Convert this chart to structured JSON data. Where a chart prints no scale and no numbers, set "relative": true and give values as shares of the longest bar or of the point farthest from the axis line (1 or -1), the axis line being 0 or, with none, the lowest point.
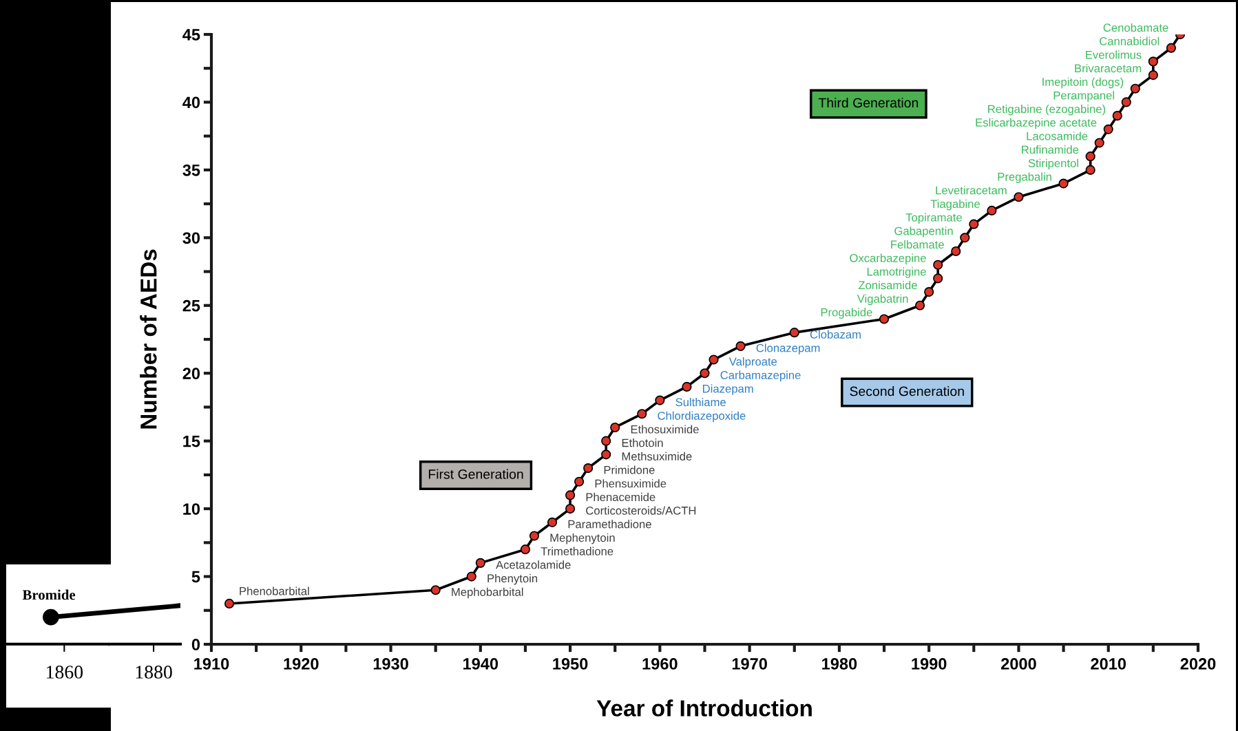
{
  "chart_data": [
    {
      "type": "line",
      "xlabel": "Year of Introduction",
      "ylabel": "Number of AEDs",
      "xlim": [
        1910,
        2020
      ],
      "ylim": [
        0,
        45
      ],
      "marker": "circle",
      "grid": false,
      "xticks": [
        1910,
        1920,
        1930,
        1940,
        1950,
        1960,
        1970,
        1980,
        1990,
        2000,
        2010,
        2020
      ],
      "yticks": [
        0,
        5,
        10,
        15,
        20,
        25,
        30,
        35,
        40,
        45
      ],
      "series": [
        {
          "name": "First Generation",
          "color": "#000000",
          "colors": [
            "#d8352a",
            "#d8352a",
            "#d8352a",
            "#d8352a",
            "#d8352a",
            "#d8352a",
            "#d8352a",
            "#d8352a",
            "#d8352a",
            "#d8352a",
            "#d8352a",
            "#d8352a",
            "#d8352a",
            "#d8352a"
          ],
          "x": [
            1912,
            1935,
            1939,
            1940,
            1945,
            1946,
            1948,
            1950,
            1950,
            1951,
            1952,
            1954,
            1954,
            1955
          ],
          "values": [
            3,
            4,
            5,
            6,
            7,
            8,
            9,
            10,
            11,
            12,
            13,
            14,
            15,
            16
          ],
          "value_labels": [
            "Phenobarbital",
            "Mephobarbital",
            "Phenytoin",
            "Acetazolamide",
            "Trimethadione",
            "Mephenytoin",
            "Paramethadione",
            "Corticosteroids/ACTH",
            "Phenacemide",
            "Phensuximide",
            "Primidone",
            "Methsuximide",
            "Ethotoin",
            "Ethosuximide"
          ]
        },
        {
          "name": "Second Generation",
          "color": "#000000",
          "colors": [
            "#d8352a",
            "#d8352a",
            "#d8352a",
            "#d8352a",
            "#d8352a",
            "#d8352a",
            "#d8352a"
          ],
          "x": [
            1958,
            1960,
            1963,
            1965,
            1966,
            1969,
            1975
          ],
          "values": [
            17,
            18,
            19,
            20,
            21,
            22,
            23
          ],
          "value_labels": [
            "Chlordiazepoxide",
            "Sulthiame",
            "Diazepam",
            "Carbamazepine",
            "Valproate",
            "Clonazepam",
            "Clobazam"
          ]
        },
        {
          "name": "Third Generation",
          "color": "#000000",
          "colors": [
            "#d8352a",
            "#d8352a",
            "#d8352a",
            "#d8352a",
            "#d8352a",
            "#d8352a",
            "#d8352a",
            "#d8352a",
            "#d8352a",
            "#d8352a",
            "#d8352a",
            "#d8352a",
            "#d8352a",
            "#d8352a",
            "#d8352a",
            "#d8352a",
            "#d8352a",
            "#d8352a",
            "#d8352a",
            "#d8352a",
            "#d8352a",
            "#d8352a"
          ],
          "x": [
            1985,
            1989,
            1990,
            1991,
            1991,
            1993,
            1994,
            1995,
            1997,
            2000,
            2005,
            2008,
            2008,
            2009,
            2010,
            2011,
            2012,
            2013,
            2015,
            2015,
            2017,
            2018
          ],
          "values": [
            24,
            25,
            26,
            27,
            28,
            29,
            30,
            31,
            32,
            33,
            34,
            35,
            36,
            37,
            38,
            39,
            40,
            41,
            42,
            43,
            44,
            45
          ],
          "value_labels": [
            "Progabide",
            "Vigabatrin",
            "Zonisamide",
            "Lamotrigine",
            "Oxcarbazepine",
            "Felbamate",
            "Gabapentin",
            "Topiramate",
            "Tiagabine",
            "Levetiracetam",
            "Pregabalin",
            "Stiripentol",
            "Rufinamide",
            "Lacosamide",
            "Eslicarbazepine acetate",
            "Retigabine (ezogabine)",
            "Perampanel",
            "Imepitoin (dogs)",
            "Brivaracetam",
            "Everolimus",
            "Cannabidiol",
            "Cenobamate"
          ]
        }
      ]
    },
    {
      "type": "line",
      "xlim": [
        1847,
        1886
      ],
      "xticks": [
        1860,
        1880
      ],
      "tick_labels": "x",
      "marker": "circle",
      "relative": true,
      "series": [
        {
          "name": "Bromide",
          "color": "#000000",
          "x": [
            1857,
            1886
          ],
          "values": [
            0.7,
            1
          ]
        }
      ]
    }
  ]
}
